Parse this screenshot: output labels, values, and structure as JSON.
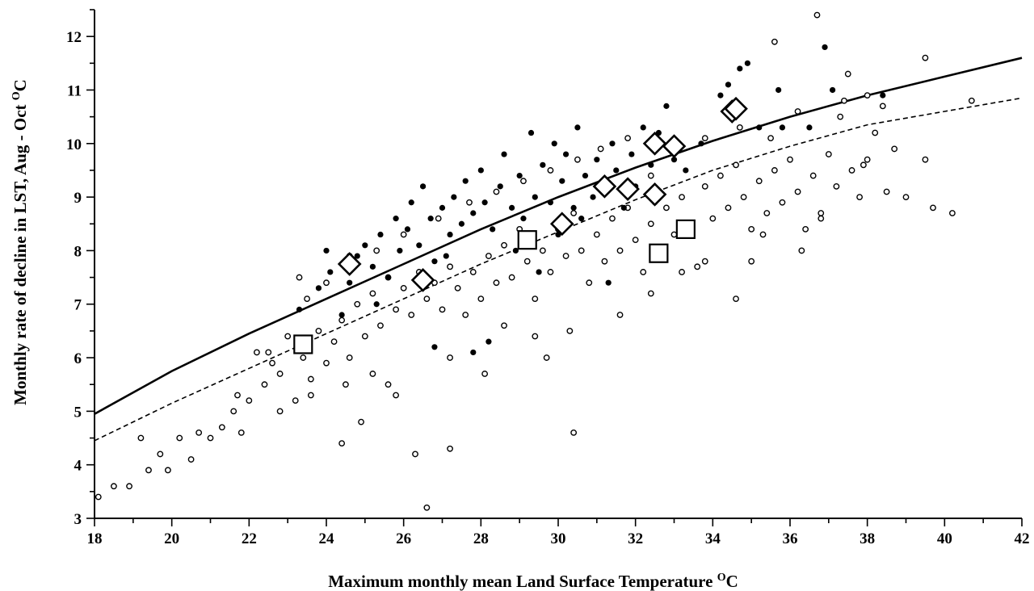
{
  "chart_data": {
    "type": "scatter",
    "title": "",
    "xlabel": "Maximum monthly mean Land Surface Temperature",
    "xlabel_unit": "C",
    "xlabel_sup": "O",
    "ylabel": "Monthly rate of decline in LST, Aug - Oct",
    "ylabel_unit": "C",
    "ylabel_sup": "O",
    "xlim": [
      18,
      42
    ],
    "ylim": [
      3,
      12.5
    ],
    "xticks": [
      18,
      20,
      22,
      24,
      26,
      28,
      30,
      32,
      34,
      36,
      38,
      40,
      42
    ],
    "yticks": [
      3,
      4,
      5,
      6,
      7,
      8,
      9,
      10,
      11,
      12
    ],
    "grid": false,
    "legend": "none",
    "series": [
      {
        "marker": "filled-circle",
        "points": [
          [
            23.3,
            6.9
          ],
          [
            23.8,
            7.3
          ],
          [
            24.0,
            8.0
          ],
          [
            24.1,
            7.6
          ],
          [
            24.6,
            7.4
          ],
          [
            24.8,
            7.9
          ],
          [
            25.0,
            8.1
          ],
          [
            25.2,
            7.7
          ],
          [
            25.4,
            8.3
          ],
          [
            25.6,
            7.5
          ],
          [
            25.8,
            8.6
          ],
          [
            25.9,
            8.0
          ],
          [
            26.1,
            8.4
          ],
          [
            26.2,
            8.9
          ],
          [
            26.4,
            8.1
          ],
          [
            26.5,
            9.2
          ],
          [
            26.7,
            8.6
          ],
          [
            26.8,
            7.8
          ],
          [
            27.0,
            8.8
          ],
          [
            27.2,
            8.3
          ],
          [
            27.3,
            9.0
          ],
          [
            27.5,
            8.5
          ],
          [
            27.6,
            9.3
          ],
          [
            27.8,
            8.7
          ],
          [
            28.0,
            9.5
          ],
          [
            28.1,
            8.9
          ],
          [
            28.3,
            8.4
          ],
          [
            28.5,
            9.2
          ],
          [
            28.6,
            9.8
          ],
          [
            28.8,
            8.8
          ],
          [
            29.0,
            9.4
          ],
          [
            29.1,
            8.6
          ],
          [
            29.3,
            10.2
          ],
          [
            29.4,
            9.0
          ],
          [
            29.6,
            9.6
          ],
          [
            29.8,
            8.9
          ],
          [
            29.9,
            10.0
          ],
          [
            30.1,
            9.3
          ],
          [
            30.2,
            9.8
          ],
          [
            30.4,
            8.8
          ],
          [
            30.5,
            10.3
          ],
          [
            30.7,
            9.4
          ],
          [
            30.9,
            9.0
          ],
          [
            31.0,
            9.7
          ],
          [
            31.2,
            9.3
          ],
          [
            31.4,
            10.0
          ],
          [
            31.5,
            9.5
          ],
          [
            31.7,
            8.8
          ],
          [
            31.9,
            9.8
          ],
          [
            32.0,
            9.2
          ],
          [
            32.2,
            10.3
          ],
          [
            32.4,
            9.6
          ],
          [
            32.6,
            10.2
          ],
          [
            32.8,
            10.7
          ],
          [
            33.0,
            9.7
          ],
          [
            33.3,
            9.5
          ],
          [
            33.7,
            10.0
          ],
          [
            34.2,
            10.9
          ],
          [
            34.4,
            11.1
          ],
          [
            34.7,
            11.4
          ],
          [
            34.9,
            11.5
          ],
          [
            35.2,
            10.3
          ],
          [
            35.7,
            11.0
          ],
          [
            35.8,
            10.3
          ],
          [
            36.5,
            10.3
          ],
          [
            36.9,
            11.8
          ],
          [
            37.1,
            11.0
          ],
          [
            38.4,
            10.9
          ],
          [
            26.8,
            6.2
          ],
          [
            27.8,
            6.1
          ],
          [
            28.2,
            6.3
          ],
          [
            31.3,
            7.4
          ],
          [
            29.5,
            7.6
          ],
          [
            30.0,
            8.3
          ],
          [
            25.3,
            7.0
          ],
          [
            24.4,
            6.8
          ],
          [
            27.1,
            7.9
          ],
          [
            28.9,
            8.0
          ],
          [
            30.6,
            8.6
          ],
          [
            32.5,
            8.9
          ]
        ]
      },
      {
        "marker": "open-circle",
        "points": [
          [
            18.1,
            3.4
          ],
          [
            18.5,
            3.6
          ],
          [
            18.9,
            3.6
          ],
          [
            19.2,
            4.5
          ],
          [
            19.4,
            3.9
          ],
          [
            19.7,
            4.2
          ],
          [
            19.9,
            3.9
          ],
          [
            20.2,
            4.5
          ],
          [
            20.5,
            4.1
          ],
          [
            20.7,
            4.6
          ],
          [
            21.0,
            4.5
          ],
          [
            21.3,
            4.7
          ],
          [
            21.6,
            5.0
          ],
          [
            21.8,
            4.6
          ],
          [
            22.0,
            5.2
          ],
          [
            22.2,
            6.1
          ],
          [
            22.4,
            5.5
          ],
          [
            22.6,
            5.9
          ],
          [
            22.8,
            5.7
          ],
          [
            23.0,
            6.4
          ],
          [
            23.2,
            5.2
          ],
          [
            23.4,
            6.0
          ],
          [
            23.6,
            5.6
          ],
          [
            23.8,
            6.5
          ],
          [
            24.0,
            5.9
          ],
          [
            24.2,
            6.3
          ],
          [
            24.4,
            6.7
          ],
          [
            24.6,
            6.0
          ],
          [
            24.8,
            7.0
          ],
          [
            25.0,
            6.4
          ],
          [
            25.2,
            7.2
          ],
          [
            25.4,
            6.6
          ],
          [
            25.6,
            7.5
          ],
          [
            25.8,
            6.9
          ],
          [
            26.0,
            7.3
          ],
          [
            26.2,
            6.8
          ],
          [
            26.4,
            7.6
          ],
          [
            26.6,
            7.1
          ],
          [
            26.8,
            7.4
          ],
          [
            27.0,
            6.9
          ],
          [
            27.2,
            7.7
          ],
          [
            27.4,
            7.3
          ],
          [
            27.6,
            6.8
          ],
          [
            27.8,
            7.6
          ],
          [
            28.0,
            7.1
          ],
          [
            28.2,
            7.9
          ],
          [
            28.4,
            7.4
          ],
          [
            28.6,
            8.1
          ],
          [
            28.8,
            7.5
          ],
          [
            29.0,
            8.4
          ],
          [
            29.2,
            7.8
          ],
          [
            29.4,
            7.1
          ],
          [
            29.6,
            8.0
          ],
          [
            29.8,
            7.6
          ],
          [
            30.0,
            8.4
          ],
          [
            30.2,
            7.9
          ],
          [
            30.4,
            8.7
          ],
          [
            30.6,
            8.0
          ],
          [
            30.8,
            7.4
          ],
          [
            31.0,
            8.3
          ],
          [
            31.2,
            7.8
          ],
          [
            31.4,
            8.6
          ],
          [
            31.6,
            8.0
          ],
          [
            31.8,
            8.8
          ],
          [
            32.0,
            8.2
          ],
          [
            32.2,
            7.6
          ],
          [
            32.4,
            8.5
          ],
          [
            32.6,
            8.0
          ],
          [
            32.8,
            8.8
          ],
          [
            33.0,
            8.3
          ],
          [
            33.2,
            9.0
          ],
          [
            33.4,
            8.5
          ],
          [
            33.6,
            7.7
          ],
          [
            33.8,
            9.2
          ],
          [
            34.0,
            8.6
          ],
          [
            34.2,
            9.4
          ],
          [
            34.4,
            8.8
          ],
          [
            34.6,
            9.6
          ],
          [
            34.8,
            9.0
          ],
          [
            35.0,
            8.4
          ],
          [
            35.2,
            9.3
          ],
          [
            35.4,
            8.7
          ],
          [
            35.6,
            9.5
          ],
          [
            35.8,
            8.9
          ],
          [
            36.0,
            9.7
          ],
          [
            36.2,
            9.1
          ],
          [
            36.4,
            8.4
          ],
          [
            36.6,
            9.4
          ],
          [
            36.8,
            8.7
          ],
          [
            37.0,
            9.8
          ],
          [
            37.2,
            9.2
          ],
          [
            37.4,
            10.8
          ],
          [
            37.6,
            9.5
          ],
          [
            37.8,
            9.0
          ],
          [
            38.0,
            9.7
          ],
          [
            38.2,
            10.2
          ],
          [
            38.5,
            9.1
          ],
          [
            38.7,
            9.9
          ],
          [
            39.0,
            9.0
          ],
          [
            39.5,
            9.7
          ],
          [
            39.7,
            8.8
          ],
          [
            40.2,
            8.7
          ],
          [
            40.7,
            10.8
          ],
          [
            39.5,
            11.6
          ],
          [
            36.7,
            12.4
          ],
          [
            35.6,
            11.9
          ],
          [
            37.5,
            11.3
          ],
          [
            36.8,
            8.6
          ],
          [
            35.0,
            7.8
          ],
          [
            34.6,
            7.1
          ],
          [
            33.8,
            7.8
          ],
          [
            33.2,
            7.6
          ],
          [
            32.4,
            7.2
          ],
          [
            31.6,
            6.8
          ],
          [
            30.3,
            6.5
          ],
          [
            29.7,
            6.0
          ],
          [
            29.4,
            6.4
          ],
          [
            28.6,
            6.6
          ],
          [
            28.1,
            5.7
          ],
          [
            27.2,
            6.0
          ],
          [
            25.8,
            5.3
          ],
          [
            25.2,
            5.7
          ],
          [
            24.9,
            4.8
          ],
          [
            24.4,
            4.4
          ],
          [
            26.3,
            4.2
          ],
          [
            27.2,
            4.3
          ],
          [
            30.4,
            4.6
          ],
          [
            26.6,
            3.2
          ],
          [
            25.6,
            5.5
          ],
          [
            24.5,
            5.5
          ],
          [
            23.6,
            5.3
          ],
          [
            22.8,
            5.0
          ],
          [
            21.7,
            5.3
          ],
          [
            22.5,
            6.1
          ],
          [
            23.5,
            7.1
          ],
          [
            23.3,
            7.5
          ],
          [
            24.0,
            7.4
          ],
          [
            24.6,
            7.9
          ],
          [
            25.3,
            8.0
          ],
          [
            26.0,
            8.3
          ],
          [
            26.9,
            8.6
          ],
          [
            27.7,
            8.9
          ],
          [
            28.4,
            9.1
          ],
          [
            29.1,
            9.3
          ],
          [
            29.8,
            9.5
          ],
          [
            30.5,
            9.7
          ],
          [
            31.1,
            9.9
          ],
          [
            31.8,
            10.1
          ],
          [
            32.4,
            9.4
          ],
          [
            33.1,
            9.9
          ],
          [
            33.8,
            10.1
          ],
          [
            34.7,
            10.3
          ],
          [
            35.5,
            10.1
          ],
          [
            36.2,
            10.6
          ],
          [
            37.3,
            10.5
          ],
          [
            38.0,
            10.9
          ],
          [
            38.4,
            10.7
          ],
          [
            37.9,
            9.6
          ],
          [
            36.3,
            8.0
          ],
          [
            35.3,
            8.3
          ]
        ]
      },
      {
        "marker": "open-diamond",
        "points": [
          [
            24.6,
            7.75
          ],
          [
            26.5,
            7.45
          ],
          [
            30.1,
            8.5
          ],
          [
            31.2,
            9.2
          ],
          [
            31.8,
            9.15
          ],
          [
            32.5,
            9.05
          ],
          [
            32.5,
            10.0
          ],
          [
            33.0,
            9.95
          ],
          [
            34.5,
            10.6
          ],
          [
            34.6,
            10.65
          ]
        ]
      },
      {
        "marker": "open-square",
        "points": [
          [
            23.4,
            6.25
          ],
          [
            29.2,
            8.2
          ],
          [
            32.6,
            7.95
          ],
          [
            33.3,
            8.4
          ]
        ]
      },
      {
        "marker": "solid-line",
        "points": [
          [
            18,
            4.95
          ],
          [
            20,
            5.75
          ],
          [
            22,
            6.45
          ],
          [
            24,
            7.1
          ],
          [
            26,
            7.75
          ],
          [
            28,
            8.4
          ],
          [
            30,
            9.0
          ],
          [
            32,
            9.55
          ],
          [
            34,
            10.05
          ],
          [
            36,
            10.5
          ],
          [
            38,
            10.9
          ],
          [
            40,
            11.25
          ],
          [
            42,
            11.6
          ]
        ]
      },
      {
        "marker": "dashed-line",
        "points": [
          [
            18,
            4.45
          ],
          [
            20,
            5.15
          ],
          [
            22,
            5.8
          ],
          [
            24,
            6.45
          ],
          [
            26,
            7.1
          ],
          [
            28,
            7.75
          ],
          [
            30,
            8.35
          ],
          [
            32,
            8.95
          ],
          [
            34,
            9.5
          ],
          [
            36,
            9.95
          ],
          [
            38,
            10.35
          ],
          [
            40,
            10.6
          ],
          [
            42,
            10.85
          ]
        ]
      }
    ]
  }
}
